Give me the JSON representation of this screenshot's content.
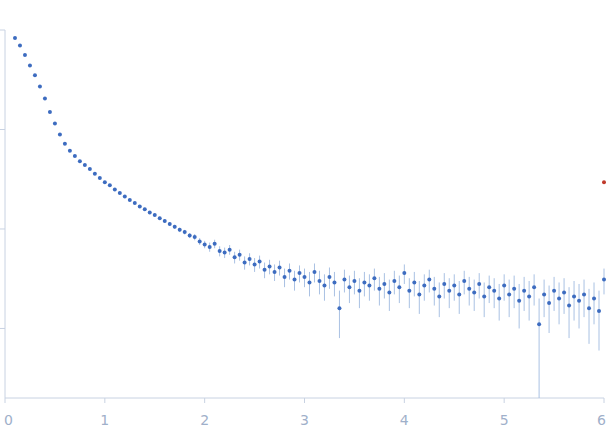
{
  "chart_data": {
    "type": "scatter",
    "log": "y",
    "grid": false,
    "tick_labels": "x",
    "xlim": [
      0,
      6
    ],
    "xticks": [
      0,
      1,
      2,
      3,
      4,
      5,
      6
    ],
    "ylim": [
      0.02,
      100
    ],
    "yticks": [
      0.1,
      1,
      10,
      100
    ],
    "series": [
      {
        "color": "#3d6cc0",
        "marker": "circle",
        "x": [
          0.1,
          0.15,
          0.2,
          0.25,
          0.3,
          0.35,
          0.4,
          0.45,
          0.5,
          0.55,
          0.6,
          0.65,
          0.7,
          0.75,
          0.8,
          0.85,
          0.9,
          0.95,
          1.0,
          1.05,
          1.1,
          1.15,
          1.2,
          1.25,
          1.3,
          1.35,
          1.4,
          1.45,
          1.5,
          1.55,
          1.6,
          1.65,
          1.7,
          1.75,
          1.8,
          1.85,
          1.9,
          1.95,
          2.0,
          2.05,
          2.1,
          2.15,
          2.2,
          2.25,
          2.3,
          2.35,
          2.4,
          2.45,
          2.5,
          2.55,
          2.6,
          2.65,
          2.7,
          2.75,
          2.8,
          2.85,
          2.9,
          2.95,
          3.0,
          3.05,
          3.1,
          3.15,
          3.2,
          3.25,
          3.3,
          3.35,
          3.4,
          3.45,
          3.5,
          3.55,
          3.6,
          3.65,
          3.7,
          3.75,
          3.8,
          3.85,
          3.9,
          3.95,
          4.0,
          4.05,
          4.1,
          4.15,
          4.2,
          4.25,
          4.3,
          4.35,
          4.4,
          4.45,
          4.5,
          4.55,
          4.6,
          4.65,
          4.7,
          4.75,
          4.8,
          4.85,
          4.9,
          4.95,
          5.0,
          5.05,
          5.1,
          5.15,
          5.2,
          5.25,
          5.3,
          5.35,
          5.4,
          5.45,
          5.5,
          5.55,
          5.6,
          5.65,
          5.7,
          5.75,
          5.8,
          5.85,
          5.9,
          5.95,
          6.0
        ],
        "values": [
          83,
          70,
          56,
          44,
          35,
          27,
          20.5,
          15,
          11.5,
          8.9,
          7.2,
          6.1,
          5.4,
          4.8,
          4.4,
          4.0,
          3.6,
          3.25,
          2.95,
          2.75,
          2.5,
          2.3,
          2.12,
          1.95,
          1.82,
          1.68,
          1.58,
          1.46,
          1.38,
          1.28,
          1.2,
          1.12,
          1.05,
          0.98,
          0.93,
          0.86,
          0.83,
          0.75,
          0.7,
          0.66,
          0.71,
          0.6,
          0.58,
          0.62,
          0.52,
          0.55,
          0.46,
          0.5,
          0.44,
          0.47,
          0.39,
          0.42,
          0.37,
          0.41,
          0.33,
          0.38,
          0.31,
          0.36,
          0.33,
          0.29,
          0.37,
          0.3,
          0.27,
          0.33,
          0.29,
          0.16,
          0.31,
          0.26,
          0.3,
          0.24,
          0.29,
          0.27,
          0.32,
          0.25,
          0.28,
          0.23,
          0.3,
          0.26,
          0.36,
          0.24,
          0.29,
          0.22,
          0.27,
          0.31,
          0.25,
          0.21,
          0.28,
          0.24,
          0.27,
          0.22,
          0.3,
          0.25,
          0.23,
          0.28,
          0.21,
          0.26,
          0.24,
          0.2,
          0.27,
          0.22,
          0.25,
          0.19,
          0.24,
          0.21,
          0.26,
          0.11,
          0.22,
          0.18,
          0.24,
          0.2,
          0.23,
          0.17,
          0.21,
          0.19,
          0.22,
          0.16,
          0.2,
          0.15,
          0.31
        ],
        "errors": [
          0.8,
          0.6,
          0.4,
          0.3,
          0.25,
          0.2,
          0.15,
          0.12,
          0.1,
          0.08,
          0.07,
          0.06,
          0.06,
          0.05,
          0.05,
          0.05,
          0.05,
          0.05,
          0.05,
          0.05,
          0.05,
          0.05,
          0.05,
          0.05,
          0.05,
          0.05,
          0.05,
          0.05,
          0.05,
          0.05,
          0.05,
          0.05,
          0.05,
          0.05,
          0.05,
          0.05,
          0.06,
          0.06,
          0.06,
          0.07,
          0.07,
          0.07,
          0.07,
          0.07,
          0.07,
          0.07,
          0.07,
          0.07,
          0.07,
          0.07,
          0.07,
          0.07,
          0.07,
          0.07,
          0.07,
          0.07,
          0.07,
          0.07,
          0.07,
          0.08,
          0.08,
          0.08,
          0.08,
          0.08,
          0.08,
          0.08,
          0.08,
          0.08,
          0.08,
          0.08,
          0.08,
          0.08,
          0.08,
          0.08,
          0.08,
          0.08,
          0.08,
          0.08,
          0.08,
          0.08,
          0.08,
          0.08,
          0.08,
          0.08,
          0.08,
          0.08,
          0.08,
          0.08,
          0.08,
          0.08,
          0.08,
          0.08,
          0.08,
          0.08,
          0.08,
          0.08,
          0.08,
          0.08,
          0.08,
          0.09,
          0.09,
          0.09,
          0.09,
          0.09,
          0.09,
          0.09,
          0.09,
          0.09,
          0.09,
          0.09,
          0.09,
          0.09,
          0.09,
          0.09,
          0.09,
          0.09,
          0.09,
          0.09,
          0.09
        ]
      },
      {
        "color": "#c0392b",
        "marker": "circle",
        "x": [
          6.0
        ],
        "values": [
          2.95
        ]
      }
    ]
  }
}
